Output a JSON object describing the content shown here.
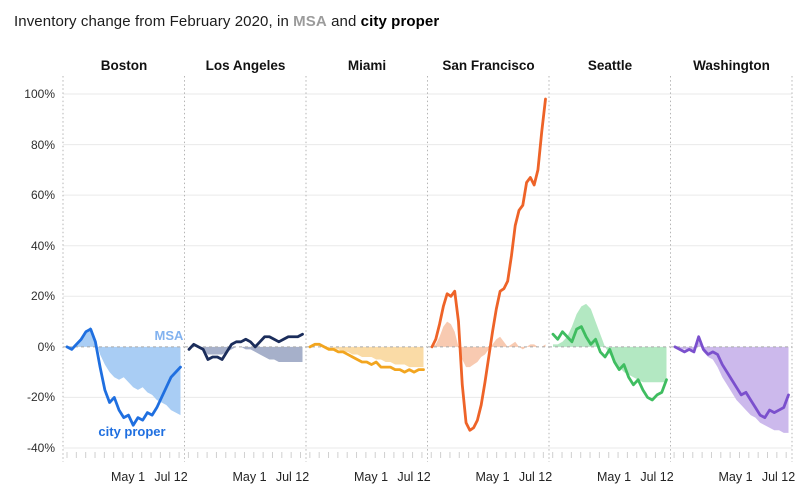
{
  "header": {
    "title_prefix": "Inventory change from February 2020, in ",
    "title_msa": "MSA",
    "title_and": " and ",
    "title_city": "city proper"
  },
  "chart_data": {
    "type": "line",
    "title": "Inventory change from February 2020, in MSA and city proper",
    "ylabel": "",
    "xlabel": "",
    "ylim": [
      -40,
      100
    ],
    "grid": true,
    "y_tick_labels": [
      "100%",
      "80%",
      "60%",
      "40%",
      "20%",
      "0%",
      "-20%",
      "-40%"
    ],
    "x_tick_labels": [
      "May 1",
      "Jul 12"
    ],
    "legend": {
      "area_series": "MSA",
      "line_series": "city proper",
      "position": "inline-first-panel"
    },
    "zero_line_color": "#a9a9a9",
    "gridline_color": "#eaeaea",
    "separator_color": "#b5b5b5",
    "minor_tick_color": "#d0d0d0",
    "panels": [
      {
        "title": "Boston",
        "line_color": "#1f6fe0",
        "fill_color": "#a9cdf4",
        "msa_label_color": "#82b2ef",
        "city_label_color": "#1f6fe0",
        "series": {
          "msa": [
            0,
            -1,
            1,
            3,
            6,
            8,
            3,
            -3,
            -7,
            -10,
            -12,
            -13,
            -12,
            -14,
            -16,
            -17,
            -16,
            -18,
            -19,
            -21,
            -22,
            -23,
            -25,
            -26,
            -27
          ],
          "city": [
            0,
            -1,
            1,
            3,
            6,
            7,
            2,
            -8,
            -17,
            -22,
            -20,
            -25,
            -28,
            -27,
            -31,
            -28,
            -29,
            -26,
            -27,
            -24,
            -20,
            -16,
            -12,
            -10,
            -8
          ]
        }
      },
      {
        "title": "Los Angeles",
        "line_color": "#1b2d5b",
        "fill_color": "#a6b0ca",
        "series": {
          "msa": [
            0,
            0,
            0,
            -1,
            -3,
            -3,
            -3,
            -3,
            -2,
            -1,
            0,
            0,
            -1,
            -1,
            -2,
            -3,
            -4,
            -5,
            -5,
            -6,
            -6,
            -6,
            -6,
            -6,
            -6
          ],
          "city": [
            -1,
            1,
            0,
            -1,
            -5,
            -4,
            -4,
            -5,
            -2,
            1,
            2,
            2,
            3,
            2,
            0,
            2,
            4,
            4,
            3,
            2,
            3,
            4,
            4,
            4,
            5
          ]
        }
      },
      {
        "title": "Miami",
        "line_color": "#f2a51f",
        "fill_color": "#fadba6",
        "series": {
          "msa": [
            0,
            0,
            0,
            0,
            -1,
            -1,
            -1,
            -2,
            -2,
            -3,
            -3,
            -4,
            -4,
            -4,
            -5,
            -5,
            -6,
            -6,
            -7,
            -7,
            -7,
            -8,
            -8,
            -8,
            -8
          ],
          "city": [
            0,
            1,
            1,
            0,
            -1,
            -1,
            -2,
            -2,
            -3,
            -4,
            -5,
            -6,
            -6,
            -7,
            -6,
            -8,
            -8,
            -8,
            -9,
            -9,
            -10,
            -9,
            -10,
            -9,
            -9
          ]
        }
      },
      {
        "title": "San Francisco",
        "line_color": "#ee6328",
        "fill_color": "#f8cab1",
        "series": {
          "msa": [
            0,
            1,
            4,
            8,
            10,
            9,
            6,
            0,
            -5,
            -8,
            -8,
            -7,
            -6,
            -4,
            -3,
            -1,
            1,
            3,
            4,
            2,
            0,
            1,
            2,
            0,
            -1,
            0,
            1,
            1,
            0,
            0,
            1
          ],
          "city": [
            0,
            3,
            9,
            16,
            21,
            20,
            22,
            10,
            -15,
            -30,
            -33,
            -32,
            -29,
            -23,
            -14,
            -4,
            6,
            15,
            22,
            23,
            26,
            36,
            48,
            54,
            56,
            65,
            67,
            64,
            70,
            85,
            98
          ]
        }
      },
      {
        "title": "Seattle",
        "line_color": "#3fbd60",
        "fill_color": "#b3e8c2",
        "series": {
          "msa": [
            1,
            1,
            2,
            4,
            8,
            13,
            16,
            17,
            15,
            10,
            5,
            0,
            -3,
            -6,
            -8,
            -10,
            -11,
            -12,
            -13,
            -14,
            -14,
            -14,
            -14,
            -14,
            -14
          ],
          "city": [
            5,
            3,
            6,
            4,
            2,
            7,
            8,
            4,
            1,
            3,
            -2,
            -4,
            -1,
            -6,
            -9,
            -7,
            -12,
            -15,
            -13,
            -17,
            -20,
            -21,
            -19,
            -18,
            -13
          ]
        }
      },
      {
        "title": "Washington",
        "line_color": "#7b50cd",
        "fill_color": "#ccb9ec",
        "series": {
          "msa": [
            0,
            -1,
            -1,
            -1,
            -1,
            2,
            -2,
            -4,
            -5,
            -8,
            -12,
            -15,
            -18,
            -21,
            -23,
            -25,
            -27,
            -28,
            -30,
            -31,
            -32,
            -33,
            -33,
            -34,
            -34
          ],
          "city": [
            0,
            -1,
            -2,
            -1,
            -2,
            4,
            -1,
            -3,
            -2,
            -3,
            -7,
            -10,
            -13,
            -16,
            -19,
            -18,
            -21,
            -24,
            -27,
            -28,
            -25,
            -26,
            -25,
            -24,
            -19
          ]
        }
      }
    ]
  }
}
